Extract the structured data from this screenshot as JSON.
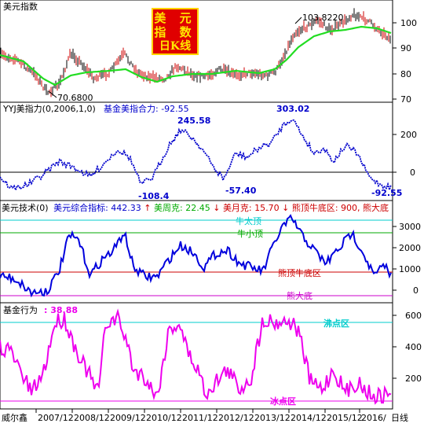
{
  "panel1": {
    "title": "美元指数",
    "badge": [
      "美 元",
      "指 数",
      "日K线"
    ],
    "high_label": "103.8220",
    "low_label": "70.6800",
    "y_ticks": [
      "100",
      "90",
      "80",
      "70"
    ]
  },
  "panel2": {
    "title": "YYJ美指力(0,2006,1,0)",
    "indicator": "基金美指合力: -92.55",
    "labels": [
      "245.58",
      "303.02",
      "-108.4",
      "-57.40",
      "-92.55"
    ],
    "y_ticks": [
      "200",
      "0"
    ]
  },
  "panel3": {
    "title_parts": [
      {
        "text": "美元技术(0)",
        "color": "#000000"
      },
      {
        "text": "美元综合指标: 442.33",
        "color": "#0000cc"
      },
      {
        "text": "↑",
        "color": "#cc0000"
      },
      {
        "text": "美周克: 22.45",
        "color": "#00aa00"
      },
      {
        "text": "↓",
        "color": "#cc0000"
      },
      {
        "text": "美月克: 15.70",
        "color": "#cc0000"
      },
      {
        "text": "↓",
        "color": "#cc0000"
      },
      {
        "text": "熊顶牛底区: 900, 熊大底",
        "color": "#cc0000"
      }
    ],
    "line_labels": [
      "牛太顶",
      "牛小顶",
      "熊顶牛底区",
      "熊大底"
    ],
    "y_ticks": [
      "3000",
      "2000",
      "1000",
      "0"
    ]
  },
  "panel4": {
    "title": "基金行为",
    "value": ": 38.88",
    "line_labels": [
      "沸点区",
      "冰点区"
    ],
    "y_ticks": [
      "600",
      "400",
      "200"
    ]
  },
  "footer": {
    "brand": "威尔鑫",
    "dates": [
      "2007/12",
      "2008/12",
      "2009/12",
      "2010/12",
      "2011/12",
      "2012/12",
      "2013/12",
      "2014/12",
      "2015/12",
      "2016/"
    ],
    "period": "日线"
  },
  "colors": {
    "ma_line": "#22dd22",
    "strength": "#0000cc",
    "composite": "#0000dd",
    "fund": "#ee00ee",
    "cyan": "#00cccc",
    "green": "#00aa00",
    "red": "#cc0000",
    "magenta": "#cc00cc"
  }
}
